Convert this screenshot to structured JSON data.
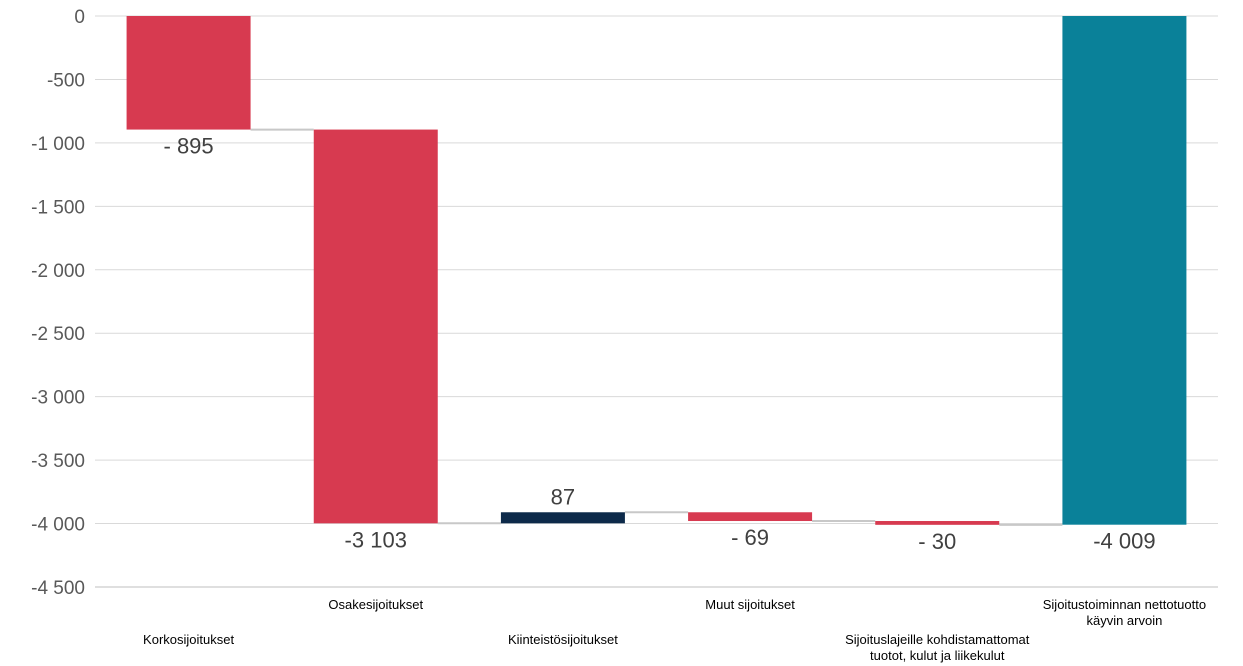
{
  "chart_data": {
    "type": "bar",
    "subtype": "waterfall",
    "title": "",
    "xlabel": "",
    "ylabel": "",
    "ylim": [
      -4500,
      0
    ],
    "yticks": [
      0,
      -500,
      -1000,
      -1500,
      -2000,
      -2500,
      -3000,
      -3500,
      -4000,
      -4500
    ],
    "ytick_labels": [
      "0",
      "-500",
      "-1 000",
      "-1 500",
      "-2 000",
      "-2 500",
      "-3 000",
      "-3 500",
      "-4 000",
      "-4 500"
    ],
    "grid": true,
    "legend": "none",
    "categories": [
      [
        "Korkosijoitukset"
      ],
      [
        "Osakesijoitukset"
      ],
      [
        "Kiinteistösijoitukset"
      ],
      [
        "Muut sijoitukset"
      ],
      [
        "Sijoituslajeille kohdistamattomat",
        "tuotot, kulut ja liikekulut"
      ],
      [
        "Sijoitustoiminnan nettotuotto",
        "käyvin arvoin"
      ]
    ],
    "values": [
      -895,
      -3103,
      87,
      -69,
      -30,
      -4009
    ],
    "value_labels": [
      "- 895",
      "-3 103",
      "87",
      "- 69",
      "- 30",
      "-4 009"
    ],
    "bar_kind": [
      "decrease",
      "decrease",
      "increase",
      "decrease",
      "decrease",
      "total"
    ],
    "colors": {
      "decrease": "#d73a50",
      "increase": "#0d2a4a",
      "total": "#0a8199",
      "grid": "#d9d9d9",
      "connector": "#c8c8c8",
      "axis": "#bfbfbf"
    }
  }
}
